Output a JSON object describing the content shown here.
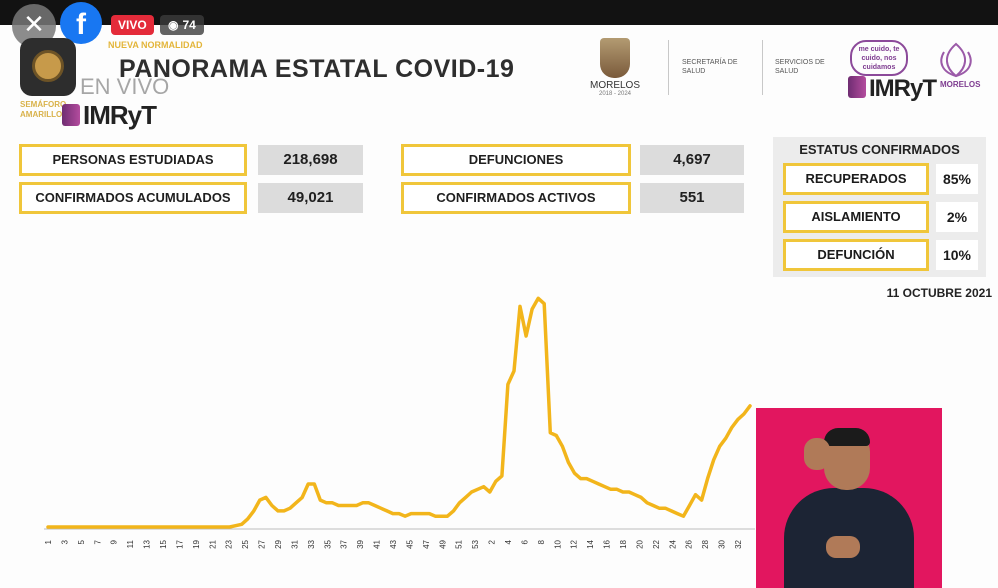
{
  "overlay": {
    "close_icon": "close-icon",
    "facebook_icon": "facebook-icon",
    "live_label": "VIVO",
    "viewer_count": "74",
    "viewer_icon": "eye-icon"
  },
  "header": {
    "semaforo_label": "SEMÁFORO AMARILLO",
    "nueva_normalidad": "NUEVA NORMALIDAD",
    "title": "PANORAMA ESTATAL COVID-19",
    "en_vivo": "EN VIVO",
    "imryt": "IMRyT",
    "morelos": "MORELOS",
    "morelos_years": "2018 - 2024",
    "secretaria": "SECRETARÍA DE SALUD",
    "servicios": "SERVICIOS DE SALUD",
    "me_cuido": "me cuido, te cuido, nos cuidamos",
    "morelos_brand": "MORELOS"
  },
  "stats": {
    "personas_estudiadas": {
      "label": "PERSONAS ESTUDIADAS",
      "value": "218,698"
    },
    "confirmados_acumulados": {
      "label": "CONFIRMADOS ACUMULADOS",
      "value": "49,021"
    },
    "defunciones": {
      "label": "DEFUNCIONES",
      "value": "4,697"
    },
    "confirmados_activos": {
      "label": "CONFIRMADOS ACTIVOS",
      "value": "551"
    }
  },
  "status": {
    "title": "ESTATUS CONFIRMADOS",
    "items": [
      {
        "label": "RECUPERADOS",
        "value": "85%"
      },
      {
        "label": "AISLAMIENTO",
        "value": "2%"
      },
      {
        "label": "DEFUNCIÓN",
        "value": "10%"
      }
    ]
  },
  "report_date": "11 OCTUBRE 2021",
  "colors": {
    "accent": "#f0c63a",
    "line": "#f2b51b",
    "interpreter_bg": "#e2165f"
  },
  "chart_data": {
    "type": "line",
    "title": "",
    "xlabel": "",
    "ylabel": "",
    "tick_labels": [
      "1",
      "3",
      "5",
      "7",
      "9",
      "11",
      "13",
      "15",
      "17",
      "19",
      "21",
      "23",
      "25",
      "27",
      "29",
      "31",
      "33",
      "35",
      "37",
      "39",
      "41",
      "43",
      "45",
      "47",
      "49",
      "51",
      "53",
      "2",
      "4",
      "6",
      "8",
      "10",
      "12",
      "14",
      "16",
      "18",
      "20",
      "22",
      "24",
      "26",
      "28",
      "30",
      "32"
    ],
    "ylim": [
      0,
      100
    ],
    "grid": false,
    "series": [
      {
        "values": [
          0,
          0,
          0,
          0,
          0,
          0,
          0,
          0,
          0,
          0,
          0,
          0,
          0,
          0,
          0,
          0,
          0,
          0,
          0,
          0,
          0,
          0,
          0,
          0,
          0,
          0,
          0,
          0,
          0,
          0,
          0,
          0.5,
          1,
          3,
          6,
          10,
          11,
          8,
          6,
          6,
          7,
          9,
          11,
          16,
          16,
          10,
          9,
          9,
          8,
          8,
          8,
          8,
          9,
          9,
          8,
          7,
          6,
          5,
          5,
          4,
          5,
          5,
          5,
          5,
          4,
          4,
          4,
          6,
          9,
          11,
          13,
          14,
          15,
          13,
          17,
          19,
          53,
          58,
          82,
          71,
          81,
          85,
          83,
          35,
          34,
          30,
          24,
          20,
          18,
          18,
          17,
          16,
          15,
          14,
          14,
          13,
          13,
          12,
          11,
          9,
          8,
          7,
          7,
          6,
          5,
          4,
          8,
          12,
          10,
          18,
          25,
          30,
          33,
          37,
          40,
          42,
          45
        ]
      }
    ]
  }
}
